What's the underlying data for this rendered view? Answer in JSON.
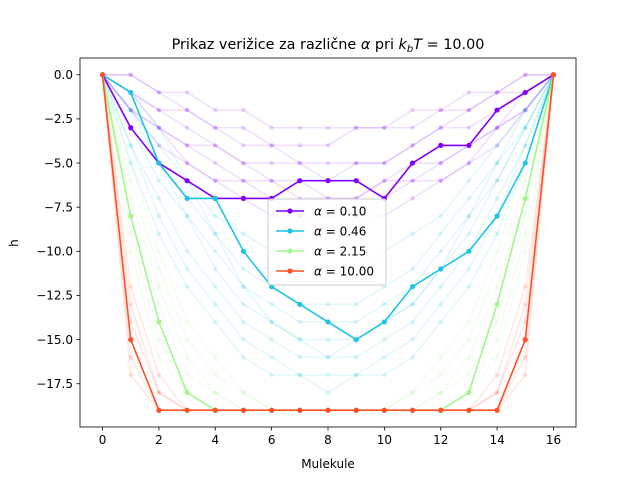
{
  "chart_data": {
    "type": "line",
    "title": "Prikaz verižice za različne α pri k_bT = 10.00",
    "title_parts": {
      "prefix": "Prikaz verižice za različne ",
      "alpha": "α",
      "mid": " pri ",
      "k": "k",
      "b": "b",
      "T": "T",
      "eq": " = 10.00"
    },
    "xlabel": "Mulekule",
    "ylabel": "h",
    "xlim": [
      -0.8,
      16.8
    ],
    "ylim": [
      -19.95,
      0.95
    ],
    "xticks": [
      "0",
      "2",
      "4",
      "6",
      "8",
      "10",
      "12",
      "14",
      "16"
    ],
    "yticks": [
      "0.0",
      "−2.5",
      "−5.0",
      "−7.5",
      "−10.0",
      "−12.5",
      "−15.0",
      "−17.5"
    ],
    "legend_position": "center",
    "x": [
      0,
      1,
      2,
      3,
      4,
      5,
      6,
      7,
      8,
      9,
      10,
      11,
      12,
      13,
      14,
      15,
      16
    ],
    "series": [
      {
        "name": "α = 0.10",
        "name_parts": {
          "alpha": "α",
          "eq": " = 0.10"
        },
        "color": "#8000ff",
        "values": [
          0,
          -3,
          -5,
          -6,
          -7,
          -7,
          -7,
          -6,
          -6,
          -6,
          -7,
          -5,
          -4,
          -4,
          -2,
          -1,
          0
        ]
      },
      {
        "name": "α = 0.46",
        "name_parts": {
          "alpha": "α",
          "eq": " = 0.46"
        },
        "color": "#1dc4e3",
        "values": [
          0,
          -1,
          -5,
          -7,
          -7,
          -10,
          -12,
          -13,
          -14,
          -15,
          -14,
          -12,
          -11,
          -10,
          -8,
          -5,
          0
        ]
      },
      {
        "name": "α = 2.15",
        "name_parts": {
          "alpha": "α",
          "eq": " = 2.15"
        },
        "color": "#a3f58f",
        "values": [
          0,
          -8,
          -14,
          -18,
          -19,
          -19,
          -19,
          -19,
          -19,
          -19,
          -19,
          -19,
          -19,
          -18,
          -13,
          -7,
          0
        ]
      },
      {
        "name": "α = 10.00",
        "name_parts": {
          "alpha": "α",
          "eq": " = 10.00"
        },
        "color": "#ff5027",
        "values": [
          0,
          -15,
          -19,
          -19,
          -19,
          -19,
          -19,
          -19,
          -19,
          -19,
          -19,
          -19,
          -19,
          -19,
          -19,
          -15,
          0
        ]
      }
    ],
    "background_series": [
      {
        "color": "#8000ff",
        "values": [
          0,
          0,
          -1,
          -1,
          -2,
          -2,
          -3,
          -3,
          -3,
          -3,
          -3,
          -2,
          -2,
          -1,
          -1,
          0,
          0
        ]
      },
      {
        "color": "#8000ff",
        "values": [
          0,
          -1,
          -2,
          -2,
          -3,
          -4,
          -4,
          -4,
          -4,
          -3,
          -3,
          -3,
          -2,
          -2,
          -1,
          -1,
          0
        ]
      },
      {
        "color": "#8000ff",
        "values": [
          0,
          -1,
          -2,
          -3,
          -4,
          -5,
          -5,
          -5,
          -6,
          -5,
          -5,
          -4,
          -3,
          -3,
          -2,
          -1,
          0
        ]
      },
      {
        "color": "#8000ff",
        "values": [
          0,
          -2,
          -3,
          -4,
          -5,
          -6,
          -6,
          -7,
          -7,
          -7,
          -6,
          -5,
          -5,
          -4,
          -3,
          -2,
          0
        ]
      },
      {
        "color": "#8000ff",
        "values": [
          0,
          -2,
          -3,
          -5,
          -6,
          -6,
          -7,
          -8,
          -8,
          -8,
          -7,
          -6,
          -6,
          -5,
          -3,
          -2,
          0
        ]
      },
      {
        "color": "#8000ff",
        "values": [
          0,
          -2,
          -4,
          -5,
          -6,
          -7,
          -8,
          -8,
          -9,
          -8,
          -8,
          -7,
          -6,
          -5,
          -4,
          -2,
          0
        ]
      },
      {
        "color": "#8000ff",
        "values": [
          0,
          -1,
          -3,
          -4,
          -4,
          -5,
          -6,
          -6,
          -7,
          -7,
          -6,
          -6,
          -5,
          -4,
          -3,
          -1,
          0
        ]
      },
      {
        "color": "#8000ff",
        "values": [
          0,
          0,
          -1,
          -2,
          -3,
          -3,
          -4,
          -5,
          -5,
          -5,
          -5,
          -4,
          -3,
          -2,
          -1,
          0,
          0
        ]
      },
      {
        "color": "#1dc4e3",
        "values": [
          0,
          -2,
          -4,
          -6,
          -8,
          -9,
          -10,
          -11,
          -11,
          -11,
          -10,
          -9,
          -8,
          -6,
          -4,
          -2,
          0
        ]
      },
      {
        "color": "#1dc4e3",
        "values": [
          0,
          -3,
          -6,
          -8,
          -10,
          -12,
          -13,
          -14,
          -14,
          -14,
          -13,
          -12,
          -10,
          -8,
          -6,
          -3,
          0
        ]
      },
      {
        "color": "#1dc4e3",
        "values": [
          0,
          -4,
          -7,
          -10,
          -12,
          -14,
          -15,
          -16,
          -16,
          -16,
          -15,
          -14,
          -12,
          -10,
          -7,
          -4,
          0
        ]
      },
      {
        "color": "#1dc4e3",
        "values": [
          0,
          -3,
          -5,
          -7,
          -9,
          -11,
          -12,
          -13,
          -13,
          -13,
          -12,
          -11,
          -9,
          -7,
          -5,
          -3,
          0
        ]
      },
      {
        "color": "#1dc4e3",
        "values": [
          0,
          -5,
          -9,
          -12,
          -14,
          -16,
          -17,
          -17,
          -17,
          -17,
          -17,
          -16,
          -14,
          -12,
          -9,
          -5,
          0
        ]
      },
      {
        "color": "#1dc4e3",
        "values": [
          0,
          -2,
          -5,
          -8,
          -11,
          -13,
          -14,
          -15,
          -16,
          -15,
          -14,
          -13,
          -11,
          -9,
          -6,
          -3,
          0
        ]
      },
      {
        "color": "#1dc4e3",
        "values": [
          0,
          -4,
          -8,
          -11,
          -13,
          -15,
          -16,
          -17,
          -18,
          -17,
          -16,
          -15,
          -13,
          -11,
          -8,
          -4,
          0
        ]
      },
      {
        "color": "#1dc4e3",
        "values": [
          0,
          -1,
          -3,
          -6,
          -9,
          -12,
          -14,
          -15,
          -15,
          -15,
          -14,
          -13,
          -11,
          -8,
          -5,
          -2,
          0
        ]
      },
      {
        "color": "#a3f58f",
        "values": [
          0,
          -6,
          -11,
          -15,
          -17,
          -18,
          -19,
          -19,
          -19,
          -19,
          -19,
          -18,
          -17,
          -15,
          -11,
          -6,
          0
        ]
      },
      {
        "color": "#a3f58f",
        "values": [
          0,
          -7,
          -12,
          -16,
          -18,
          -19,
          -19,
          -19,
          -19,
          -19,
          -19,
          -19,
          -18,
          -16,
          -12,
          -7,
          0
        ]
      },
      {
        "color": "#a3f58f",
        "values": [
          0,
          -9,
          -15,
          -18,
          -19,
          -19,
          -19,
          -19,
          -19,
          -19,
          -19,
          -19,
          -19,
          -18,
          -15,
          -9,
          0
        ]
      },
      {
        "color": "#a3f58f",
        "values": [
          0,
          -10,
          -16,
          -18,
          -19,
          -19,
          -19,
          -19,
          -19,
          -19,
          -19,
          -19,
          -19,
          -18,
          -16,
          -10,
          0
        ]
      },
      {
        "color": "#a3f58f",
        "values": [
          0,
          -5,
          -10,
          -14,
          -16,
          -18,
          -19,
          -19,
          -19,
          -19,
          -19,
          -18,
          -16,
          -14,
          -10,
          -5,
          0
        ]
      },
      {
        "color": "#a3f58f",
        "values": [
          0,
          -8,
          -13,
          -17,
          -18,
          -19,
          -19,
          -19,
          -19,
          -19,
          -19,
          -19,
          -18,
          -17,
          -14,
          -8,
          0
        ]
      },
      {
        "color": "#ff5027",
        "values": [
          0,
          -14,
          -18,
          -19,
          -19,
          -19,
          -19,
          -19,
          -19,
          -19,
          -19,
          -19,
          -19,
          -19,
          -18,
          -14,
          0
        ]
      },
      {
        "color": "#ff5027",
        "values": [
          0,
          -16,
          -19,
          -19,
          -19,
          -19,
          -19,
          -19,
          -19,
          -19,
          -19,
          -19,
          -19,
          -19,
          -19,
          -16,
          0
        ]
      },
      {
        "color": "#ff5027",
        "values": [
          0,
          -12,
          -17,
          -19,
          -19,
          -19,
          -19,
          -19,
          -19,
          -19,
          -19,
          -19,
          -19,
          -19,
          -17,
          -12,
          0
        ]
      },
      {
        "color": "#ff5027",
        "values": [
          0,
          -17,
          -19,
          -19,
          -19,
          -19,
          -19,
          -19,
          -19,
          -19,
          -19,
          -19,
          -19,
          -19,
          -19,
          -17,
          0
        ]
      },
      {
        "color": "#ff5027",
        "values": [
          0,
          -13,
          -18,
          -19,
          -19,
          -19,
          -19,
          -19,
          -19,
          -19,
          -19,
          -19,
          -19,
          -19,
          -18,
          -13,
          0
        ]
      }
    ]
  }
}
